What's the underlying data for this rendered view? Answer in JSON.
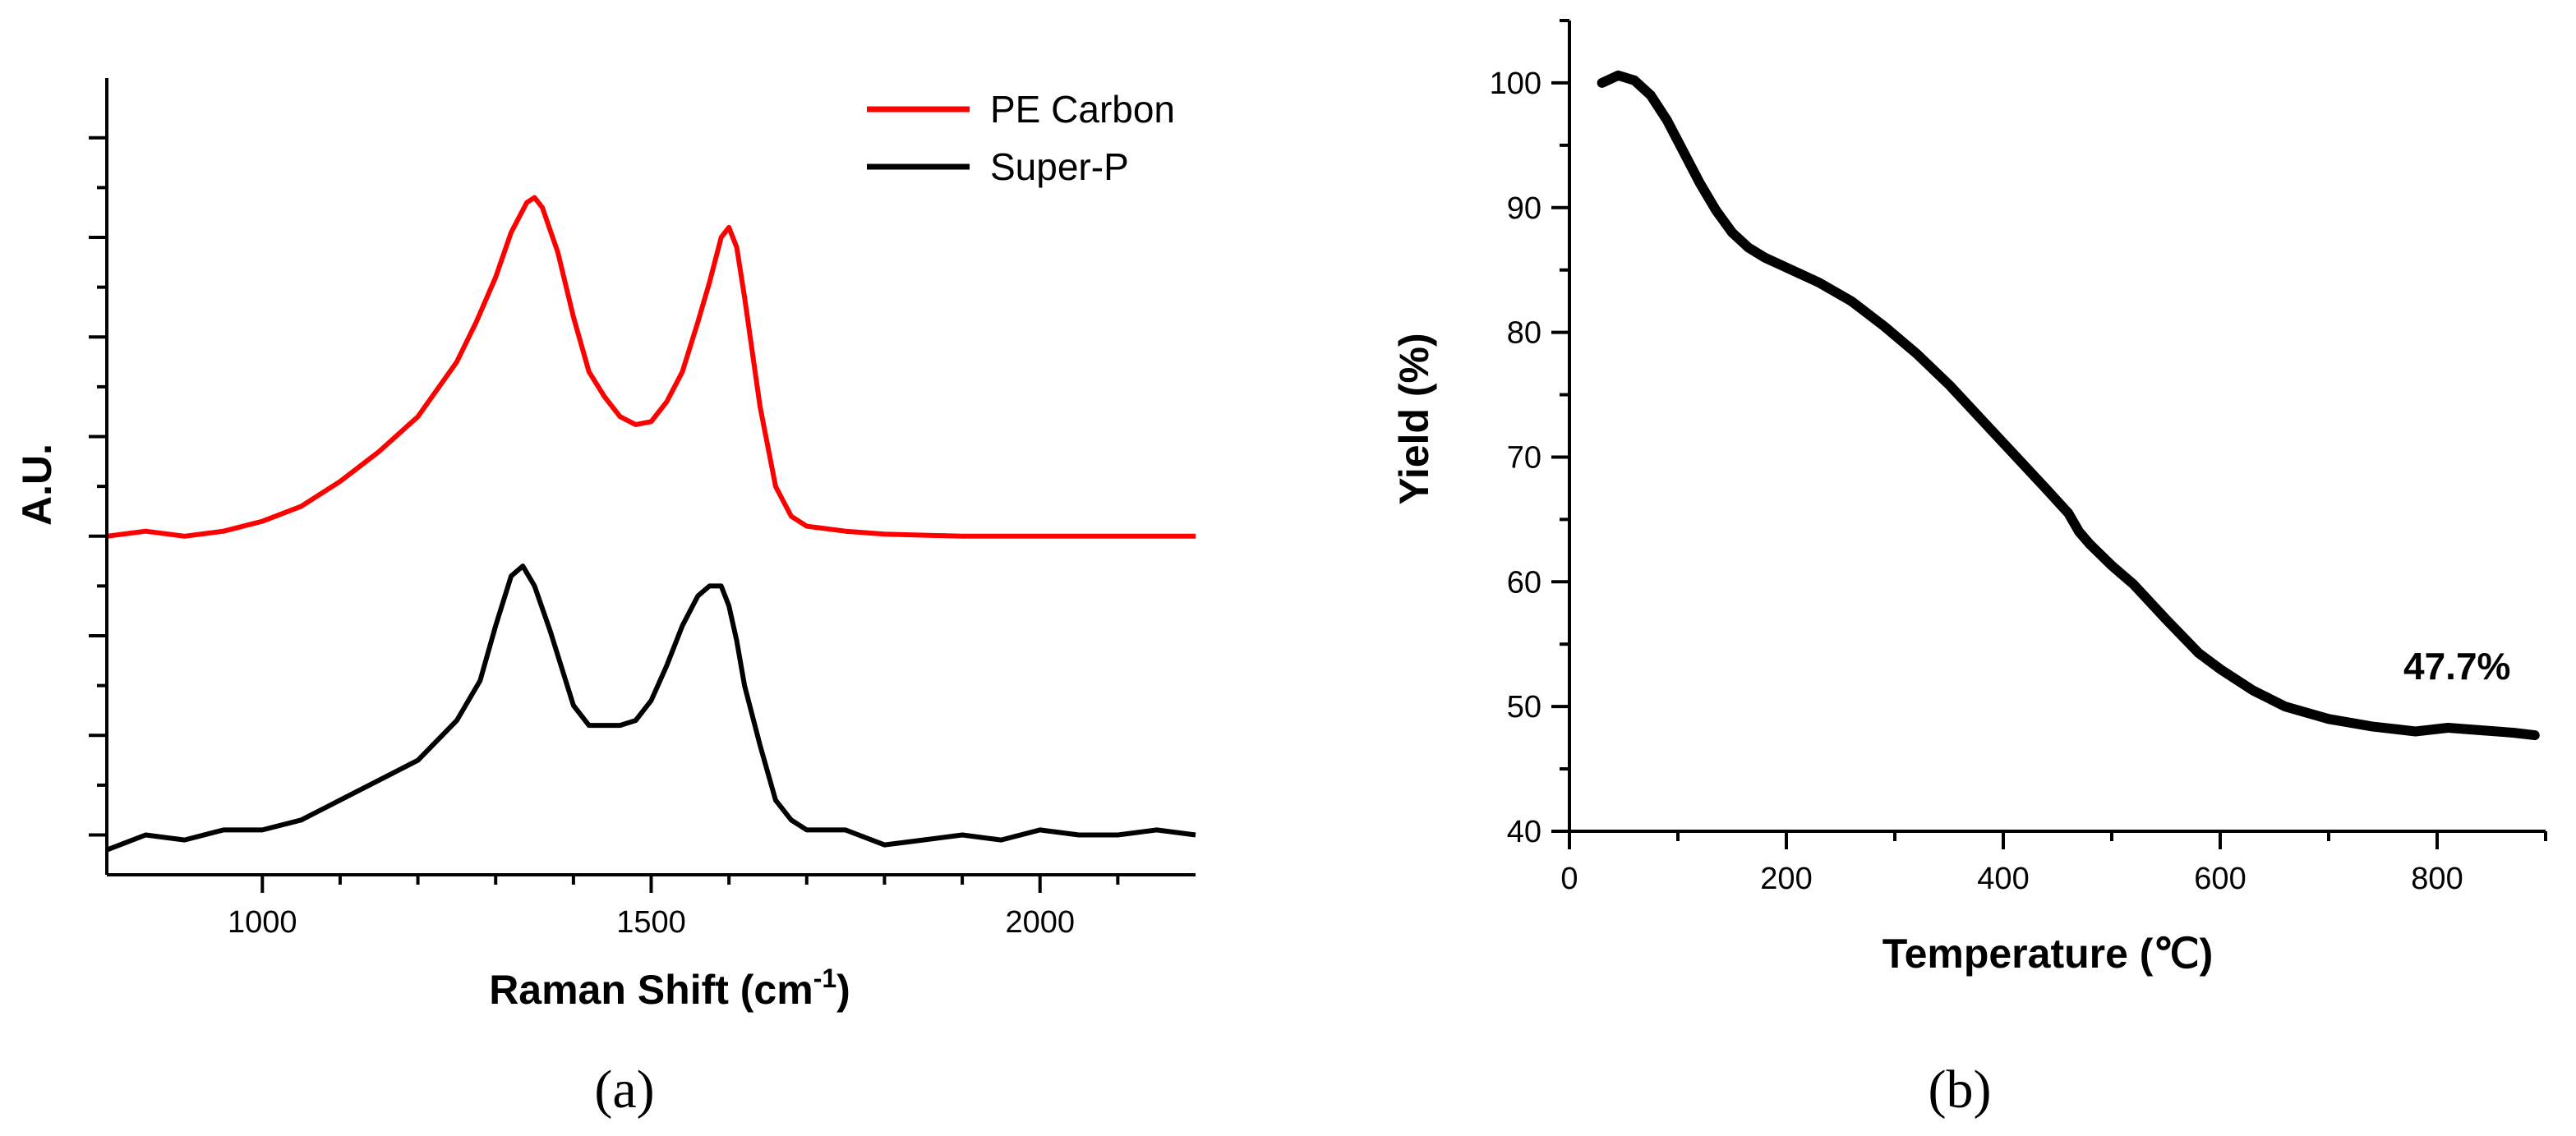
{
  "chart_data": [
    {
      "id": "a",
      "type": "line",
      "panel_label": "(a)",
      "xlabel": "Raman Shift (cm",
      "xlabel_sup": "-1",
      "xlabel_suffix": ")",
      "ylabel": "A.U.",
      "xlim": [
        800,
        2200
      ],
      "ylim": [
        -0.4,
        7.6
      ],
      "xticks": [
        1000,
        1500,
        2000
      ],
      "ytick_count": 8,
      "legend_position": "top-right",
      "series": [
        {
          "name": "PE Carbon",
          "color": "#ff0000",
          "x": [
            800,
            850,
            900,
            950,
            1000,
            1050,
            1100,
            1150,
            1200,
            1250,
            1275,
            1300,
            1320,
            1340,
            1350,
            1360,
            1380,
            1400,
            1420,
            1440,
            1460,
            1480,
            1500,
            1520,
            1540,
            1560,
            1575,
            1590,
            1600,
            1610,
            1620,
            1640,
            1660,
            1680,
            1700,
            1750,
            1800,
            1900,
            2000,
            2100,
            2200
          ],
          "y": [
            3.0,
            3.05,
            3.0,
            3.05,
            3.15,
            3.3,
            3.55,
            3.85,
            4.2,
            4.75,
            5.15,
            5.6,
            6.05,
            6.35,
            6.4,
            6.3,
            5.85,
            5.2,
            4.65,
            4.4,
            4.2,
            4.12,
            4.15,
            4.35,
            4.65,
            5.15,
            5.55,
            6.0,
            6.1,
            5.9,
            5.4,
            4.3,
            3.5,
            3.2,
            3.1,
            3.05,
            3.02,
            3.0,
            3.0,
            3.0,
            3.0
          ]
        },
        {
          "name": "Super-P",
          "color": "#000000",
          "x": [
            800,
            850,
            900,
            950,
            1000,
            1050,
            1100,
            1150,
            1200,
            1250,
            1280,
            1300,
            1320,
            1335,
            1350,
            1370,
            1400,
            1420,
            1440,
            1460,
            1480,
            1500,
            1520,
            1540,
            1560,
            1575,
            1590,
            1600,
            1610,
            1620,
            1640,
            1660,
            1680,
            1700,
            1750,
            1800,
            1850,
            1900,
            1950,
            2000,
            2050,
            2100,
            2150,
            2200
          ],
          "y": [
            -0.15,
            0.0,
            -0.05,
            0.05,
            0.05,
            0.15,
            0.35,
            0.55,
            0.75,
            1.15,
            1.55,
            2.1,
            2.6,
            2.7,
            2.5,
            2.05,
            1.3,
            1.1,
            1.1,
            1.1,
            1.15,
            1.35,
            1.7,
            2.1,
            2.4,
            2.5,
            2.5,
            2.3,
            1.95,
            1.5,
            0.9,
            0.35,
            0.15,
            0.05,
            0.05,
            -0.1,
            -0.05,
            0.0,
            -0.05,
            0.05,
            0.0,
            0.0,
            0.05,
            0.0
          ]
        }
      ]
    },
    {
      "id": "b",
      "type": "line",
      "panel_label": "(b)",
      "xlabel": "Temperature (℃)",
      "ylabel": "Yield (%)",
      "xlim": [
        0,
        900
      ],
      "ylim": [
        40,
        105
      ],
      "xticks": [
        0,
        200,
        400,
        600,
        800
      ],
      "yticks": [
        40,
        50,
        60,
        70,
        80,
        90,
        100
      ],
      "annotation": "47.7%",
      "series": [
        {
          "name": "Yield",
          "color": "#000000",
          "x": [
            30,
            45,
            60,
            75,
            90,
            105,
            120,
            135,
            150,
            165,
            180,
            200,
            230,
            260,
            290,
            320,
            350,
            380,
            410,
            440,
            460,
            470,
            480,
            500,
            520,
            550,
            580,
            600,
            630,
            660,
            700,
            740,
            780,
            810,
            840,
            870,
            890
          ],
          "y": [
            100.0,
            100.6,
            100.2,
            99.0,
            97.0,
            94.5,
            92.0,
            89.8,
            88.0,
            86.8,
            86.0,
            85.2,
            84.0,
            82.5,
            80.5,
            78.3,
            75.8,
            73.0,
            70.2,
            67.4,
            65.5,
            64.0,
            63.0,
            61.3,
            59.8,
            57.0,
            54.3,
            53.0,
            51.3,
            50.0,
            49.0,
            48.4,
            48.0,
            48.3,
            48.1,
            47.9,
            47.7
          ]
        }
      ]
    }
  ]
}
